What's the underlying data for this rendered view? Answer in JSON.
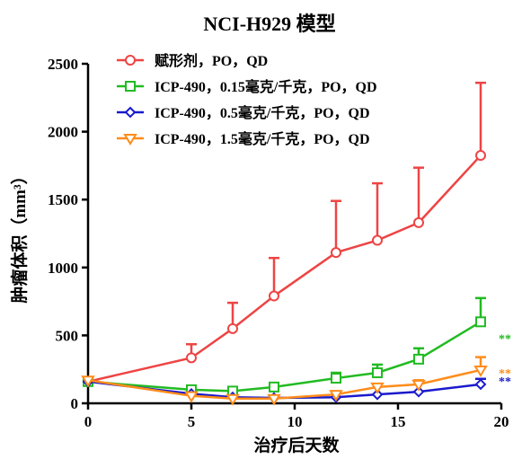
{
  "chart_data": {
    "type": "line",
    "title": "NCI-H929 模型",
    "xlabel": "治疗后天数",
    "ylabel": "肿瘤体积（mm³）",
    "xlim": [
      0,
      20
    ],
    "ylim": [
      0,
      2500
    ],
    "x_ticks": [
      "0",
      "5",
      "10",
      "15",
      "20"
    ],
    "y_ticks": [
      "0",
      "500",
      "1000",
      "1500",
      "2000",
      "2500"
    ],
    "grid": false,
    "legend_position": "top-left",
    "series": [
      {
        "name": "赋形剂，PO，QD",
        "color": "#ee4444",
        "marker": "circle",
        "error_bars": true,
        "significance": "",
        "points": [
          {
            "x": 0,
            "y": 160,
            "err": 0
          },
          {
            "x": 5,
            "y": 335,
            "err": 100
          },
          {
            "x": 7,
            "y": 550,
            "err": 190
          },
          {
            "x": 9,
            "y": 790,
            "err": 280
          },
          {
            "x": 12,
            "y": 1110,
            "err": 380
          },
          {
            "x": 14,
            "y": 1200,
            "err": 420
          },
          {
            "x": 16,
            "y": 1330,
            "err": 405
          },
          {
            "x": 19,
            "y": 1825,
            "err": 535
          }
        ]
      },
      {
        "name": "ICP-490，0.15毫克/千克，PO，QD",
        "color": "#22bb22",
        "marker": "square",
        "error_bars": true,
        "significance": "**",
        "points": [
          {
            "x": 0,
            "y": 160,
            "err": 0
          },
          {
            "x": 5,
            "y": 100,
            "err": 0
          },
          {
            "x": 7,
            "y": 90,
            "err": 0
          },
          {
            "x": 9,
            "y": 120,
            "err": 0
          },
          {
            "x": 12,
            "y": 185,
            "err": 40
          },
          {
            "x": 14,
            "y": 225,
            "err": 60
          },
          {
            "x": 16,
            "y": 325,
            "err": 80
          },
          {
            "x": 19,
            "y": 600,
            "err": 175
          }
        ]
      },
      {
        "name": "ICP-490，0.5毫克/千克，PO，QD",
        "color": "#1a1acc",
        "marker": "diamond",
        "error_bars": true,
        "significance": "**",
        "points": [
          {
            "x": 0,
            "y": 160,
            "err": 0
          },
          {
            "x": 5,
            "y": 70,
            "err": 0
          },
          {
            "x": 7,
            "y": 45,
            "err": 0
          },
          {
            "x": 9,
            "y": 40,
            "err": 0
          },
          {
            "x": 12,
            "y": 45,
            "err": 0
          },
          {
            "x": 14,
            "y": 65,
            "err": 0
          },
          {
            "x": 16,
            "y": 85,
            "err": 0
          },
          {
            "x": 19,
            "y": 140,
            "err": 40
          }
        ]
      },
      {
        "name": "ICP-490，1.5毫克/千克，PO，QD",
        "color": "#ff8c1a",
        "marker": "triangle-down",
        "error_bars": true,
        "significance": "**",
        "points": [
          {
            "x": 0,
            "y": 170,
            "err": 0
          },
          {
            "x": 5,
            "y": 55,
            "err": 0
          },
          {
            "x": 7,
            "y": 35,
            "err": 0
          },
          {
            "x": 9,
            "y": 35,
            "err": 0
          },
          {
            "x": 12,
            "y": 65,
            "err": 0
          },
          {
            "x": 14,
            "y": 120,
            "err": 0
          },
          {
            "x": 16,
            "y": 140,
            "err": 30
          },
          {
            "x": 19,
            "y": 245,
            "err": 95
          }
        ]
      }
    ]
  }
}
